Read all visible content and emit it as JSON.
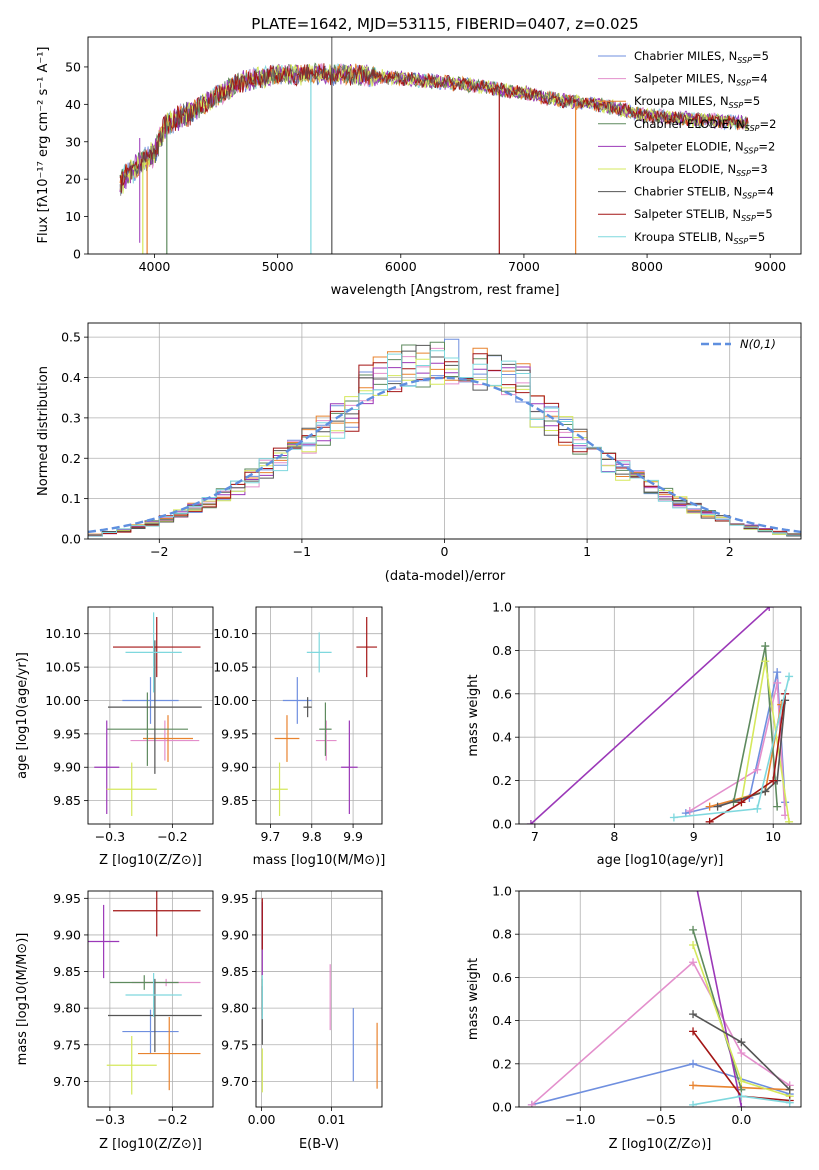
{
  "colors": [
    "#6f8fdf",
    "#e38fcc",
    "#e8832f",
    "#5e8a5e",
    "#9b38b8",
    "#d5e85c",
    "#555555",
    "#a31515",
    "#7fd8de"
  ],
  "chart_data": [
    {
      "type": "line",
      "title": "PLATE=1642, MJD=53115, FIBERID=0407, z=0.025",
      "xlabel": "wavelength [Angstrom, rest frame]",
      "ylabel": "Flux [fλ10⁻¹⁷ erg cm⁻² s⁻¹ A⁻¹]",
      "xlim": [
        3460,
        9250
      ],
      "ylim": [
        0,
        58
      ],
      "xticks": [
        4000,
        5000,
        6000,
        7000,
        8000,
        9000
      ],
      "yticks": [
        0,
        10,
        20,
        30,
        40,
        50
      ],
      "legend_position": "top-right",
      "continuum": {
        "x": [
          3720,
          3850,
          4000,
          4100,
          4300,
          4500,
          4700,
          5000,
          5300,
          5600,
          6000,
          6300,
          6600,
          7000,
          7300,
          7600,
          8000,
          8400,
          8800
        ],
        "y": [
          19,
          23,
          27,
          35,
          38,
          42,
          46,
          48,
          48,
          48,
          47,
          46,
          45,
          43,
          41,
          40,
          37,
          36,
          35
        ]
      },
      "series": [
        {
          "name": "Chabrier MILES, N_SSP=5"
        },
        {
          "name": "Salpeter MILES, N_SSP=4"
        },
        {
          "name": "Kroupa MILES, N_SSP=5"
        },
        {
          "name": "Chabrier ELODIE, N_SSP=2"
        },
        {
          "name": "Salpeter ELODIE, N_SSP=2"
        },
        {
          "name": "Kroupa ELODIE, N_SSP=3"
        },
        {
          "name": "Chabrier STELIB, N_SSP=4"
        },
        {
          "name": "Salpeter STELIB, N_SSP=5"
        },
        {
          "name": "Kroupa STELIB, N_SSP=5"
        }
      ]
    },
    {
      "type": "histogram",
      "xlabel": "(data-model)/error",
      "ylabel": "Normed distribution",
      "xlim": [
        -2.5,
        2.5
      ],
      "ylim": [
        0,
        0.535
      ],
      "xticks": [
        -2,
        -1,
        0,
        1,
        2
      ],
      "yticks": [
        0.0,
        0.1,
        0.2,
        0.3,
        0.4,
        0.5
      ],
      "reference_curve": "N(0,1)",
      "legend_position": "top-right",
      "bin_width": 0.1
    },
    {
      "type": "scatter",
      "panel": "age vs Z",
      "xlabel": "Z [log10(Z/Z⊙)]",
      "ylabel": "age [log10(age/yr)]",
      "xlim": [
        -0.335,
        -0.135
      ],
      "ylim": [
        9.815,
        10.14
      ],
      "xticks": [
        -0.3,
        -0.2
      ],
      "yticks": [
        9.85,
        9.9,
        9.95,
        10.0,
        10.05,
        10.1
      ],
      "points": [
        {
          "x": -0.235,
          "y": 10.0,
          "xerr": 0.045,
          "yerr": 0.035
        },
        {
          "x": -0.212,
          "y": 9.94,
          "xerr": 0.055,
          "yerr": 0.03
        },
        {
          "x": -0.207,
          "y": 9.943,
          "xerr": 0.04,
          "yerr": 0.035
        },
        {
          "x": -0.24,
          "y": 9.957,
          "xerr": 0.065,
          "yerr": 0.055
        },
        {
          "x": -0.305,
          "y": 9.9,
          "xerr": 0.02,
          "yerr": 0.07
        },
        {
          "x": -0.265,
          "y": 9.867,
          "xerr": 0.04,
          "yerr": 0.04
        },
        {
          "x": -0.228,
          "y": 9.99,
          "xerr": 0.075,
          "yerr": 0.1
        },
        {
          "x": -0.225,
          "y": 10.08,
          "xerr": 0.07,
          "yerr": 0.045
        },
        {
          "x": -0.23,
          "y": 10.072,
          "xerr": 0.045,
          "yerr": 0.06
        }
      ]
    },
    {
      "type": "scatter",
      "panel": "age vs mass",
      "xlabel": "mass [log10(M/M⊙)]",
      "ylabel": "",
      "xlim": [
        9.665,
        9.97
      ],
      "ylim": [
        9.815,
        10.14
      ],
      "xticks": [
        9.7,
        9.8,
        9.9
      ],
      "yticks": [
        9.85,
        9.9,
        9.95,
        10.0,
        10.05,
        10.1
      ],
      "points": [
        {
          "x": 9.765,
          "y": 10.0,
          "xerr": 0.035,
          "yerr": 0.035
        },
        {
          "x": 9.835,
          "y": 9.94,
          "xerr": 0.025,
          "yerr": 0.03
        },
        {
          "x": 9.74,
          "y": 9.943,
          "xerr": 0.03,
          "yerr": 0.035
        },
        {
          "x": 9.833,
          "y": 9.957,
          "xerr": 0.015,
          "yerr": 0.04
        },
        {
          "x": 9.891,
          "y": 9.9,
          "xerr": 0.02,
          "yerr": 0.07
        },
        {
          "x": 9.722,
          "y": 9.867,
          "xerr": 0.02,
          "yerr": 0.04
        },
        {
          "x": 9.79,
          "y": 9.99,
          "xerr": 0.01,
          "yerr": 0.015
        },
        {
          "x": 9.933,
          "y": 10.08,
          "xerr": 0.025,
          "yerr": 0.045
        },
        {
          "x": 9.818,
          "y": 10.072,
          "xerr": 0.03,
          "yerr": 0.03
        }
      ]
    },
    {
      "type": "line",
      "panel": "mass weight vs age",
      "xlabel": "age [log10(age/yr)]",
      "ylabel": "mass weight",
      "xlim": [
        6.8,
        10.35
      ],
      "ylim": [
        0,
        1.0
      ],
      "xticks": [
        7,
        8,
        9,
        10
      ],
      "yticks": [
        0.0,
        0.2,
        0.4,
        0.6,
        0.8,
        1.0
      ],
      "series": [
        {
          "x": [
            8.9,
            9.7,
            10.05,
            10.15
          ],
          "y": [
            0.05,
            0.12,
            0.7,
            0.1
          ]
        },
        {
          "x": [
            8.95,
            9.8,
            10.05,
            10.15
          ],
          "y": [
            0.06,
            0.25,
            0.65,
            0.04
          ]
        },
        {
          "x": [
            9.2,
            9.9,
            10.1
          ],
          "y": [
            0.08,
            0.15,
            0.55
          ]
        },
        {
          "x": [
            9.5,
            9.9,
            10.05
          ],
          "y": [
            0.1,
            0.82,
            0.08
          ]
        },
        {
          "x": [
            6.95,
            9.95
          ],
          "y": [
            0.0,
            1.0
          ]
        },
        {
          "x": [
            9.6,
            9.9,
            10.2
          ],
          "y": [
            0.1,
            0.75,
            0.01
          ]
        },
        {
          "x": [
            9.3,
            9.9,
            10.05,
            10.15
          ],
          "y": [
            0.08,
            0.15,
            0.2,
            0.57
          ]
        },
        {
          "x": [
            9.2,
            9.6,
            10.0,
            10.15
          ],
          "y": [
            0.01,
            0.1,
            0.2,
            0.6
          ]
        },
        {
          "x": [
            8.75,
            9.8,
            10.2
          ],
          "y": [
            0.03,
            0.07,
            0.68
          ]
        }
      ]
    },
    {
      "type": "scatter",
      "panel": "mass vs Z",
      "xlabel": "Z [log10(Z/Z⊙)]",
      "ylabel": "mass [log10(M/M⊙)]",
      "xlim": [
        -0.335,
        -0.135
      ],
      "ylim": [
        9.665,
        9.96
      ],
      "xticks": [
        -0.3,
        -0.2
      ],
      "yticks": [
        9.7,
        9.75,
        9.8,
        9.85,
        9.9,
        9.95
      ],
      "points": [
        {
          "x": -0.235,
          "y": 9.768,
          "xerr": 0.045,
          "yerr": 0.03
        },
        {
          "x": -0.21,
          "y": 9.835,
          "xerr": 0.055,
          "yerr": 0.005
        },
        {
          "x": -0.205,
          "y": 9.738,
          "xerr": 0.05,
          "yerr": 0.05
        },
        {
          "x": -0.245,
          "y": 9.835,
          "xerr": 0.055,
          "yerr": 0.01
        },
        {
          "x": -0.31,
          "y": 9.891,
          "xerr": 0.025,
          "yerr": 0.05
        },
        {
          "x": -0.265,
          "y": 9.722,
          "xerr": 0.04,
          "yerr": 0.04
        },
        {
          "x": -0.228,
          "y": 9.79,
          "xerr": 0.075,
          "yerr": 0.05
        },
        {
          "x": -0.225,
          "y": 9.933,
          "xerr": 0.07,
          "yerr": 0.035
        },
        {
          "x": -0.23,
          "y": 9.818,
          "xerr": 0.045,
          "yerr": 0.03
        }
      ]
    },
    {
      "type": "scatter",
      "panel": "mass vs E(B-V)",
      "xlabel": "E(B-V)",
      "ylabel": "",
      "xlim": [
        -0.0008,
        0.0172
      ],
      "ylim": [
        9.665,
        9.96
      ],
      "xticks": [
        0.0,
        0.01
      ],
      "yticks": [
        9.7,
        9.75,
        9.8,
        9.85,
        9.9,
        9.95
      ],
      "points": [
        {
          "x": 0.0131,
          "y": 9.75,
          "yerr": 0.05
        },
        {
          "x": 0.0098,
          "y": 9.815,
          "yerr": 0.045
        },
        {
          "x": 0.0165,
          "y": 9.735,
          "yerr": 0.045
        },
        {
          "x": 0.0001,
          "y": 9.815,
          "yerr": 0.025
        },
        {
          "x": 0.0001,
          "y": 9.895,
          "yerr": 0.05
        },
        {
          "x": 0.0001,
          "y": 9.715,
          "yerr": 0.03
        },
        {
          "x": 0.0001,
          "y": 9.79,
          "yerr": 0.04
        },
        {
          "x": 0.0001,
          "y": 9.915,
          "yerr": 0.035
        },
        {
          "x": 0.0001,
          "y": 9.815,
          "yerr": 0.03
        }
      ]
    },
    {
      "type": "line",
      "panel": "mass weight vs Z",
      "xlabel": "Z [log10(Z/Z⊙)]",
      "ylabel": "mass weight",
      "xlim": [
        -1.38,
        0.37
      ],
      "ylim": [
        0,
        1.0
      ],
      "xticks": [
        -1.0,
        -0.5,
        0.0
      ],
      "yticks": [
        0.0,
        0.2,
        0.4,
        0.6,
        0.8,
        1.0
      ],
      "series": [
        {
          "x": [
            -1.3,
            -0.3,
            0.3
          ],
          "y": [
            0.01,
            0.2,
            0.06
          ]
        },
        {
          "x": [
            -1.3,
            -0.3,
            0.0,
            0.3
          ],
          "y": [
            0.01,
            0.67,
            0.25,
            0.1
          ]
        },
        {
          "x": [
            -0.3,
            0.0,
            0.3
          ],
          "y": [
            0.1,
            0.09,
            0.08
          ]
        },
        {
          "x": [
            -0.3,
            0.0
          ],
          "y": [
            0.82,
            0.08
          ]
        },
        {
          "x": [
            -0.3,
            0.0
          ],
          "y": [
            1.1,
            0.0
          ]
        },
        {
          "x": [
            -0.3,
            0.0,
            0.3
          ],
          "y": [
            0.75,
            0.12,
            0.05
          ]
        },
        {
          "x": [
            -0.3,
            0.0,
            0.3
          ],
          "y": [
            0.43,
            0.3,
            0.08
          ]
        },
        {
          "x": [
            -0.3,
            0.0,
            0.3
          ],
          "y": [
            0.35,
            0.05,
            0.03
          ]
        },
        {
          "x": [
            -0.3,
            0.0,
            0.3
          ],
          "y": [
            0.01,
            0.05,
            0.02
          ]
        }
      ]
    }
  ]
}
